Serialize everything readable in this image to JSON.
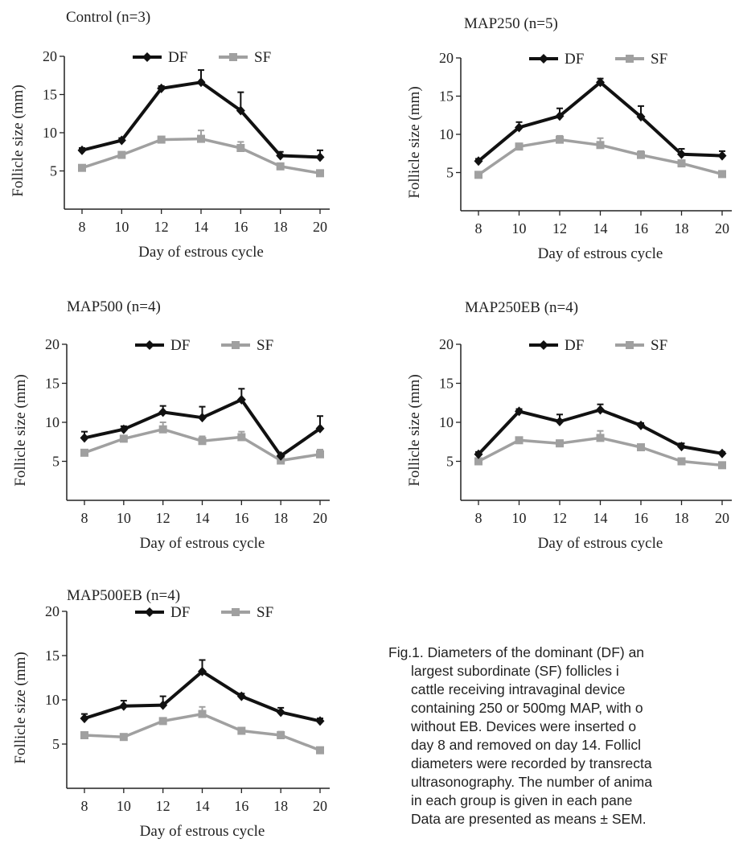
{
  "chart_data": [
    {
      "type": "line",
      "title": "Control (n=3)",
      "xlabel": "Day of estrous cycle",
      "ylabel": "Follicle size (mm)",
      "x": [
        8,
        10,
        12,
        14,
        16,
        18,
        20
      ],
      "yticks": [
        5,
        10,
        15,
        20
      ],
      "ylim": [
        0,
        20
      ],
      "legend": "top",
      "series": [
        {
          "name": "DF",
          "color": "#111111",
          "marker": "diamond",
          "values": [
            7.7,
            9.0,
            15.8,
            16.6,
            12.9,
            7.0,
            6.8
          ],
          "err": [
            0.3,
            0.3,
            0.3,
            1.6,
            2.4,
            0.5,
            0.9
          ]
        },
        {
          "name": "SF",
          "color": "#a0a0a0",
          "marker": "square",
          "values": [
            5.4,
            7.1,
            9.1,
            9.2,
            8.0,
            5.6,
            4.7
          ],
          "err": [
            0.2,
            0.2,
            0.3,
            1.1,
            0.8,
            0.3,
            0.3
          ]
        }
      ]
    },
    {
      "type": "line",
      "title": "MAP250 (n=5)",
      "xlabel": "Day of estrous cycle",
      "ylabel": "Follicle size (mm)",
      "x": [
        8,
        10,
        12,
        14,
        16,
        18,
        20
      ],
      "yticks": [
        5,
        10,
        15,
        20
      ],
      "ylim": [
        0,
        20
      ],
      "legend": "top",
      "series": [
        {
          "name": "DF",
          "color": "#111111",
          "marker": "diamond",
          "values": [
            6.5,
            10.9,
            12.4,
            16.8,
            12.3,
            7.4,
            7.2
          ],
          "err": [
            0.3,
            0.7,
            1.0,
            0.5,
            1.4,
            0.7,
            0.6
          ]
        },
        {
          "name": "SF",
          "color": "#a0a0a0",
          "marker": "square",
          "values": [
            4.7,
            8.4,
            9.3,
            8.6,
            7.3,
            6.2,
            4.8
          ],
          "err": [
            0.3,
            0.4,
            0.5,
            0.9,
            0.5,
            0.4,
            0.2
          ]
        }
      ]
    },
    {
      "type": "line",
      "title": "MAP500 (n=4)",
      "xlabel": "Day of estrous cycle",
      "ylabel": "Follicle size (mm)",
      "x": [
        8,
        10,
        12,
        14,
        16,
        18,
        20
      ],
      "yticks": [
        5,
        10,
        15,
        20
      ],
      "ylim": [
        0,
        20
      ],
      "legend": "top",
      "series": [
        {
          "name": "DF",
          "color": "#111111",
          "marker": "diamond",
          "values": [
            8.0,
            9.1,
            11.3,
            10.6,
            12.9,
            5.7,
            9.2
          ],
          "err": [
            0.8,
            0.4,
            0.8,
            1.4,
            1.4,
            0.3,
            1.6
          ]
        },
        {
          "name": "SF",
          "color": "#a0a0a0",
          "marker": "square",
          "values": [
            6.1,
            7.9,
            9.1,
            7.6,
            8.1,
            5.1,
            5.9
          ],
          "err": [
            0.3,
            0.4,
            0.9,
            0.6,
            0.7,
            0.3,
            0.6
          ]
        }
      ]
    },
    {
      "type": "line",
      "title": "MAP250EB (n=4)",
      "xlabel": "Day of estrous cycle",
      "ylabel": "Follicle size (mm)",
      "x": [
        8,
        10,
        12,
        14,
        16,
        18,
        20
      ],
      "yticks": [
        5,
        10,
        15,
        20
      ],
      "ylim": [
        0,
        20
      ],
      "legend": "top",
      "series": [
        {
          "name": "DF",
          "color": "#111111",
          "marker": "diamond",
          "values": [
            5.9,
            11.4,
            10.1,
            11.6,
            9.6,
            6.9,
            6.0
          ],
          "err": [
            0.3,
            0.3,
            0.9,
            0.7,
            0.3,
            0.4,
            0.2
          ]
        },
        {
          "name": "SF",
          "color": "#a0a0a0",
          "marker": "square",
          "values": [
            5.0,
            7.7,
            7.3,
            8.0,
            6.8,
            5.0,
            4.5
          ],
          "err": [
            0.3,
            0.3,
            0.4,
            0.9,
            0.3,
            0.3,
            0.3
          ]
        }
      ]
    },
    {
      "type": "line",
      "title": "MAP500EB (n=4)",
      "xlabel": "Day of estrous cycle",
      "ylabel": "Follicle size (mm)",
      "x": [
        8,
        10,
        12,
        14,
        16,
        18,
        20
      ],
      "yticks": [
        5,
        10,
        15,
        20
      ],
      "ylim": [
        0,
        20
      ],
      "legend": "top",
      "series": [
        {
          "name": "DF",
          "color": "#111111",
          "marker": "diamond",
          "values": [
            7.9,
            9.3,
            9.4,
            13.2,
            10.4,
            8.6,
            7.6
          ],
          "err": [
            0.5,
            0.6,
            1.0,
            1.3,
            0.3,
            0.5,
            0.3
          ]
        },
        {
          "name": "SF",
          "color": "#a0a0a0",
          "marker": "square",
          "values": [
            6.0,
            5.8,
            7.6,
            8.4,
            6.5,
            6.0,
            4.3
          ],
          "err": [
            0.2,
            0.2,
            0.3,
            0.8,
            0.3,
            0.4,
            0.2
          ]
        }
      ]
    }
  ],
  "caption": {
    "lines": [
      "Fig.1. Diameters of the dominant (DF) an",
      "largest subordinate (SF) follicles i",
      "cattle receiving intravaginal device",
      "containing 250 or 500mg MAP, with o",
      "without EB. Devices were inserted o",
      "day 8 and removed on day 14. Follicl",
      "diameters were recorded by transrecta",
      "ultrasonography. The number of anima",
      "in each group is given in each pane",
      "Data are presented as means ± SEM."
    ]
  }
}
